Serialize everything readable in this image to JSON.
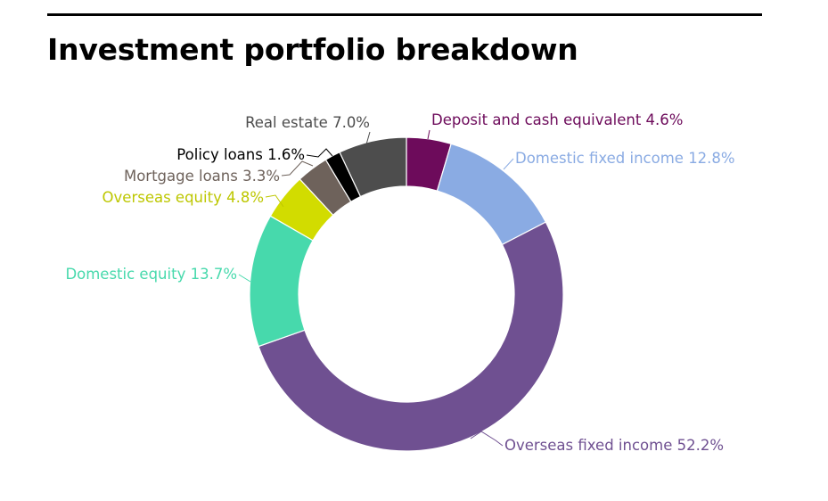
{
  "chart_data": {
    "type": "donut",
    "title": "Investment portfolio breakdown",
    "unit": "%",
    "slices": [
      {
        "name": "Deposit and cash equivalent",
        "value": 4.6,
        "color": "#6d0b5b",
        "label_color": "#6d0b5b"
      },
      {
        "name": "Domestic fixed income",
        "value": 12.8,
        "color": "#8aabe3",
        "label_color": "#8aabe3"
      },
      {
        "name": "Overseas fixed income",
        "value": 52.2,
        "color": "#6f5091",
        "label_color": "#6f5091"
      },
      {
        "name": "Domestic equity",
        "value": 13.7,
        "color": "#47d9ac",
        "label_color": "#47d9ac"
      },
      {
        "name": "Overseas equity",
        "value": 4.8,
        "color": "#d2dc00",
        "label_color": "#bdc700"
      },
      {
        "name": "Mortgage loans",
        "value": 3.3,
        "color": "#6e625b",
        "label_color": "#6e625b"
      },
      {
        "name": "Policy loans",
        "value": 1.6,
        "color": "#000000",
        "label_color": "#000000"
      },
      {
        "name": "Real estate",
        "value": 7.0,
        "color": "#4d4d4d",
        "label_color": "#4d4d4d"
      }
    ]
  }
}
